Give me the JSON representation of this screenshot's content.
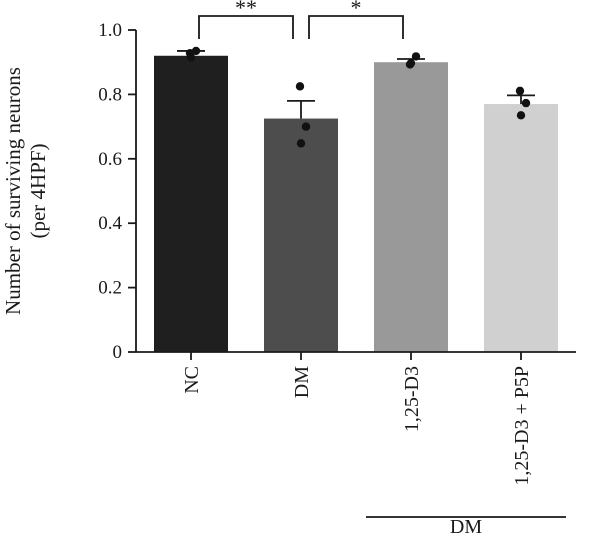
{
  "chart_data": {
    "type": "bar",
    "ylabel": [
      "Number of surviving neurons",
      "(per 4HPF)"
    ],
    "xlabel": "",
    "ylim": [
      0,
      1.0
    ],
    "y_ticks": [
      0,
      0.2,
      0.4,
      0.6,
      0.8,
      1.0
    ],
    "y_tick_labels": [
      "0",
      "0.2",
      "0.4",
      "0.6",
      "0.8",
      "1.0"
    ],
    "categories": [
      "NC",
      "DM",
      "1,25-D3",
      "1,25-D3 + P5P"
    ],
    "values": [
      0.92,
      0.725,
      0.9,
      0.77
    ],
    "error_upper": [
      0.935,
      0.78,
      0.91,
      0.797
    ],
    "points": [
      [
        0.928,
        0.935,
        0.915
      ],
      [
        0.825,
        0.7,
        0.648
      ],
      [
        0.893,
        0.918,
        0.897
      ],
      [
        0.811,
        0.773,
        0.735
      ]
    ],
    "colors": [
      "#1f1f1f",
      "#4d4d4d",
      "#999999",
      "#d0d0d0"
    ],
    "significance": [
      {
        "from": 0,
        "to": 1,
        "label": "**"
      },
      {
        "from": 1,
        "to": 2,
        "label": "*"
      }
    ],
    "group_label": {
      "label": "DM",
      "from": 2,
      "to": 3
    }
  }
}
